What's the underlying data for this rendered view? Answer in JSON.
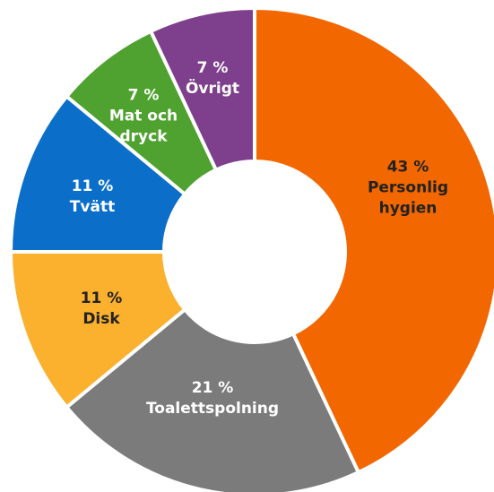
{
  "chart_data": {
    "type": "donut",
    "categories": [
      "Personlig hygien",
      "Toalettspolning",
      "Disk",
      "Tvätt",
      "Mat och dryck",
      "Övrigt"
    ],
    "values": [
      43,
      21,
      11,
      11,
      7,
      7
    ],
    "value_labels": [
      "43 %",
      "21 %",
      "11 %",
      "11 %",
      "7 %",
      "7 %"
    ],
    "colors": [
      "#f26700",
      "#7b7b7b",
      "#fbb02e",
      "#0b6fca",
      "#4fa22f",
      "#7e3f8c"
    ],
    "label_colors": [
      "#222222",
      "#ffffff",
      "#222222",
      "#ffffff",
      "#ffffff",
      "#ffffff"
    ]
  }
}
